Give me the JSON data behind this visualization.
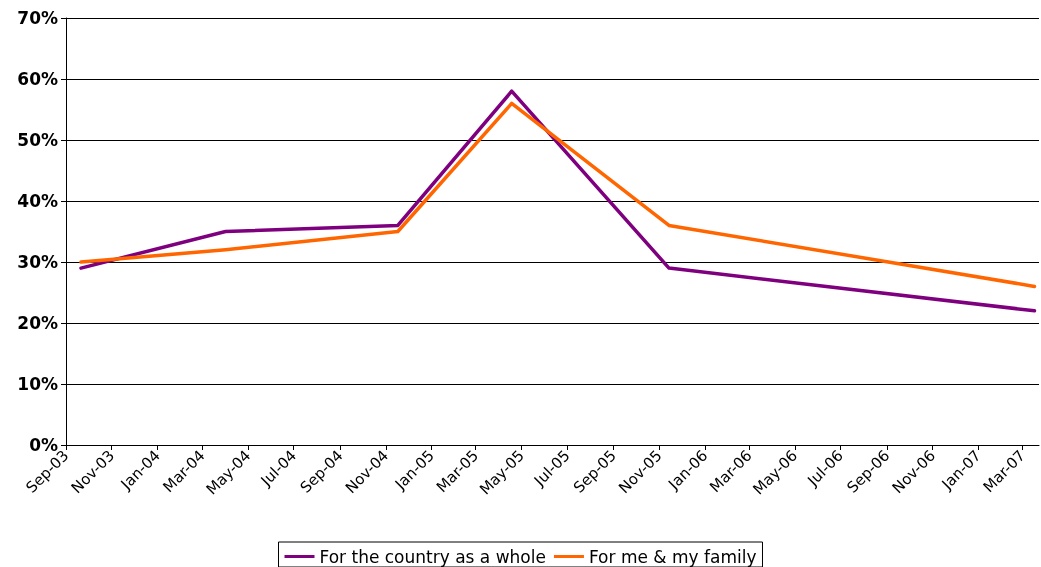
{
  "chart_data": {
    "type": "line",
    "x": [
      "2003-09-21",
      "2004-04-01",
      "2004-11-17",
      "2005-04-18",
      "2005-11-14",
      "2007-03-17"
    ],
    "series": [
      {
        "name": "For the country as a whole",
        "color": "#7f007f",
        "values": [
          29,
          35,
          36,
          58,
          29,
          22
        ]
      },
      {
        "name": "For me & my family",
        "color": "#ff6600",
        "values": [
          30,
          32,
          35,
          56,
          36,
          26
        ]
      }
    ],
    "ylim": [
      0,
      70
    ],
    "yticks": [
      {
        "value": 0,
        "label": "0%"
      },
      {
        "value": 10,
        "label": "10%"
      },
      {
        "value": 20,
        "label": "20%"
      },
      {
        "value": 30,
        "label": "30%"
      },
      {
        "value": 40,
        "label": "40%"
      },
      {
        "value": 50,
        "label": "50%"
      },
      {
        "value": 60,
        "label": "60%"
      },
      {
        "value": 70,
        "label": "70%"
      }
    ],
    "xlim": [
      "2003-09-01",
      "2007-03-23"
    ],
    "xticks": [
      {
        "value": "2003-09-01",
        "label": "Sep-03"
      },
      {
        "value": "2003-11-01",
        "label": "Nov-03"
      },
      {
        "value": "2004-01-01",
        "label": "Jan-04"
      },
      {
        "value": "2004-03-01",
        "label": "Mar-04"
      },
      {
        "value": "2004-05-01",
        "label": "May-04"
      },
      {
        "value": "2004-07-01",
        "label": "Jul-04"
      },
      {
        "value": "2004-09-01",
        "label": "Sep-04"
      },
      {
        "value": "2004-11-01",
        "label": "Nov-04"
      },
      {
        "value": "2005-01-01",
        "label": "Jan-05"
      },
      {
        "value": "2005-03-01",
        "label": "Mar-05"
      },
      {
        "value": "2005-05-01",
        "label": "May-05"
      },
      {
        "value": "2005-07-01",
        "label": "Jul-05"
      },
      {
        "value": "2005-09-01",
        "label": "Sep-05"
      },
      {
        "value": "2005-11-01",
        "label": "Nov-05"
      },
      {
        "value": "2006-01-01",
        "label": "Jan-06"
      },
      {
        "value": "2006-03-01",
        "label": "Mar-06"
      },
      {
        "value": "2006-05-01",
        "label": "May-06"
      },
      {
        "value": "2006-07-01",
        "label": "Jul-06"
      },
      {
        "value": "2006-09-01",
        "label": "Sep-06"
      },
      {
        "value": "2006-11-01",
        "label": "Nov-06"
      },
      {
        "value": "2007-01-01",
        "label": "Jan-07"
      },
      {
        "value": "2007-03-01",
        "label": "Mar-07"
      }
    ],
    "grid": "y",
    "legend": "bottom",
    "marker": "none",
    "line_style": "solid"
  }
}
